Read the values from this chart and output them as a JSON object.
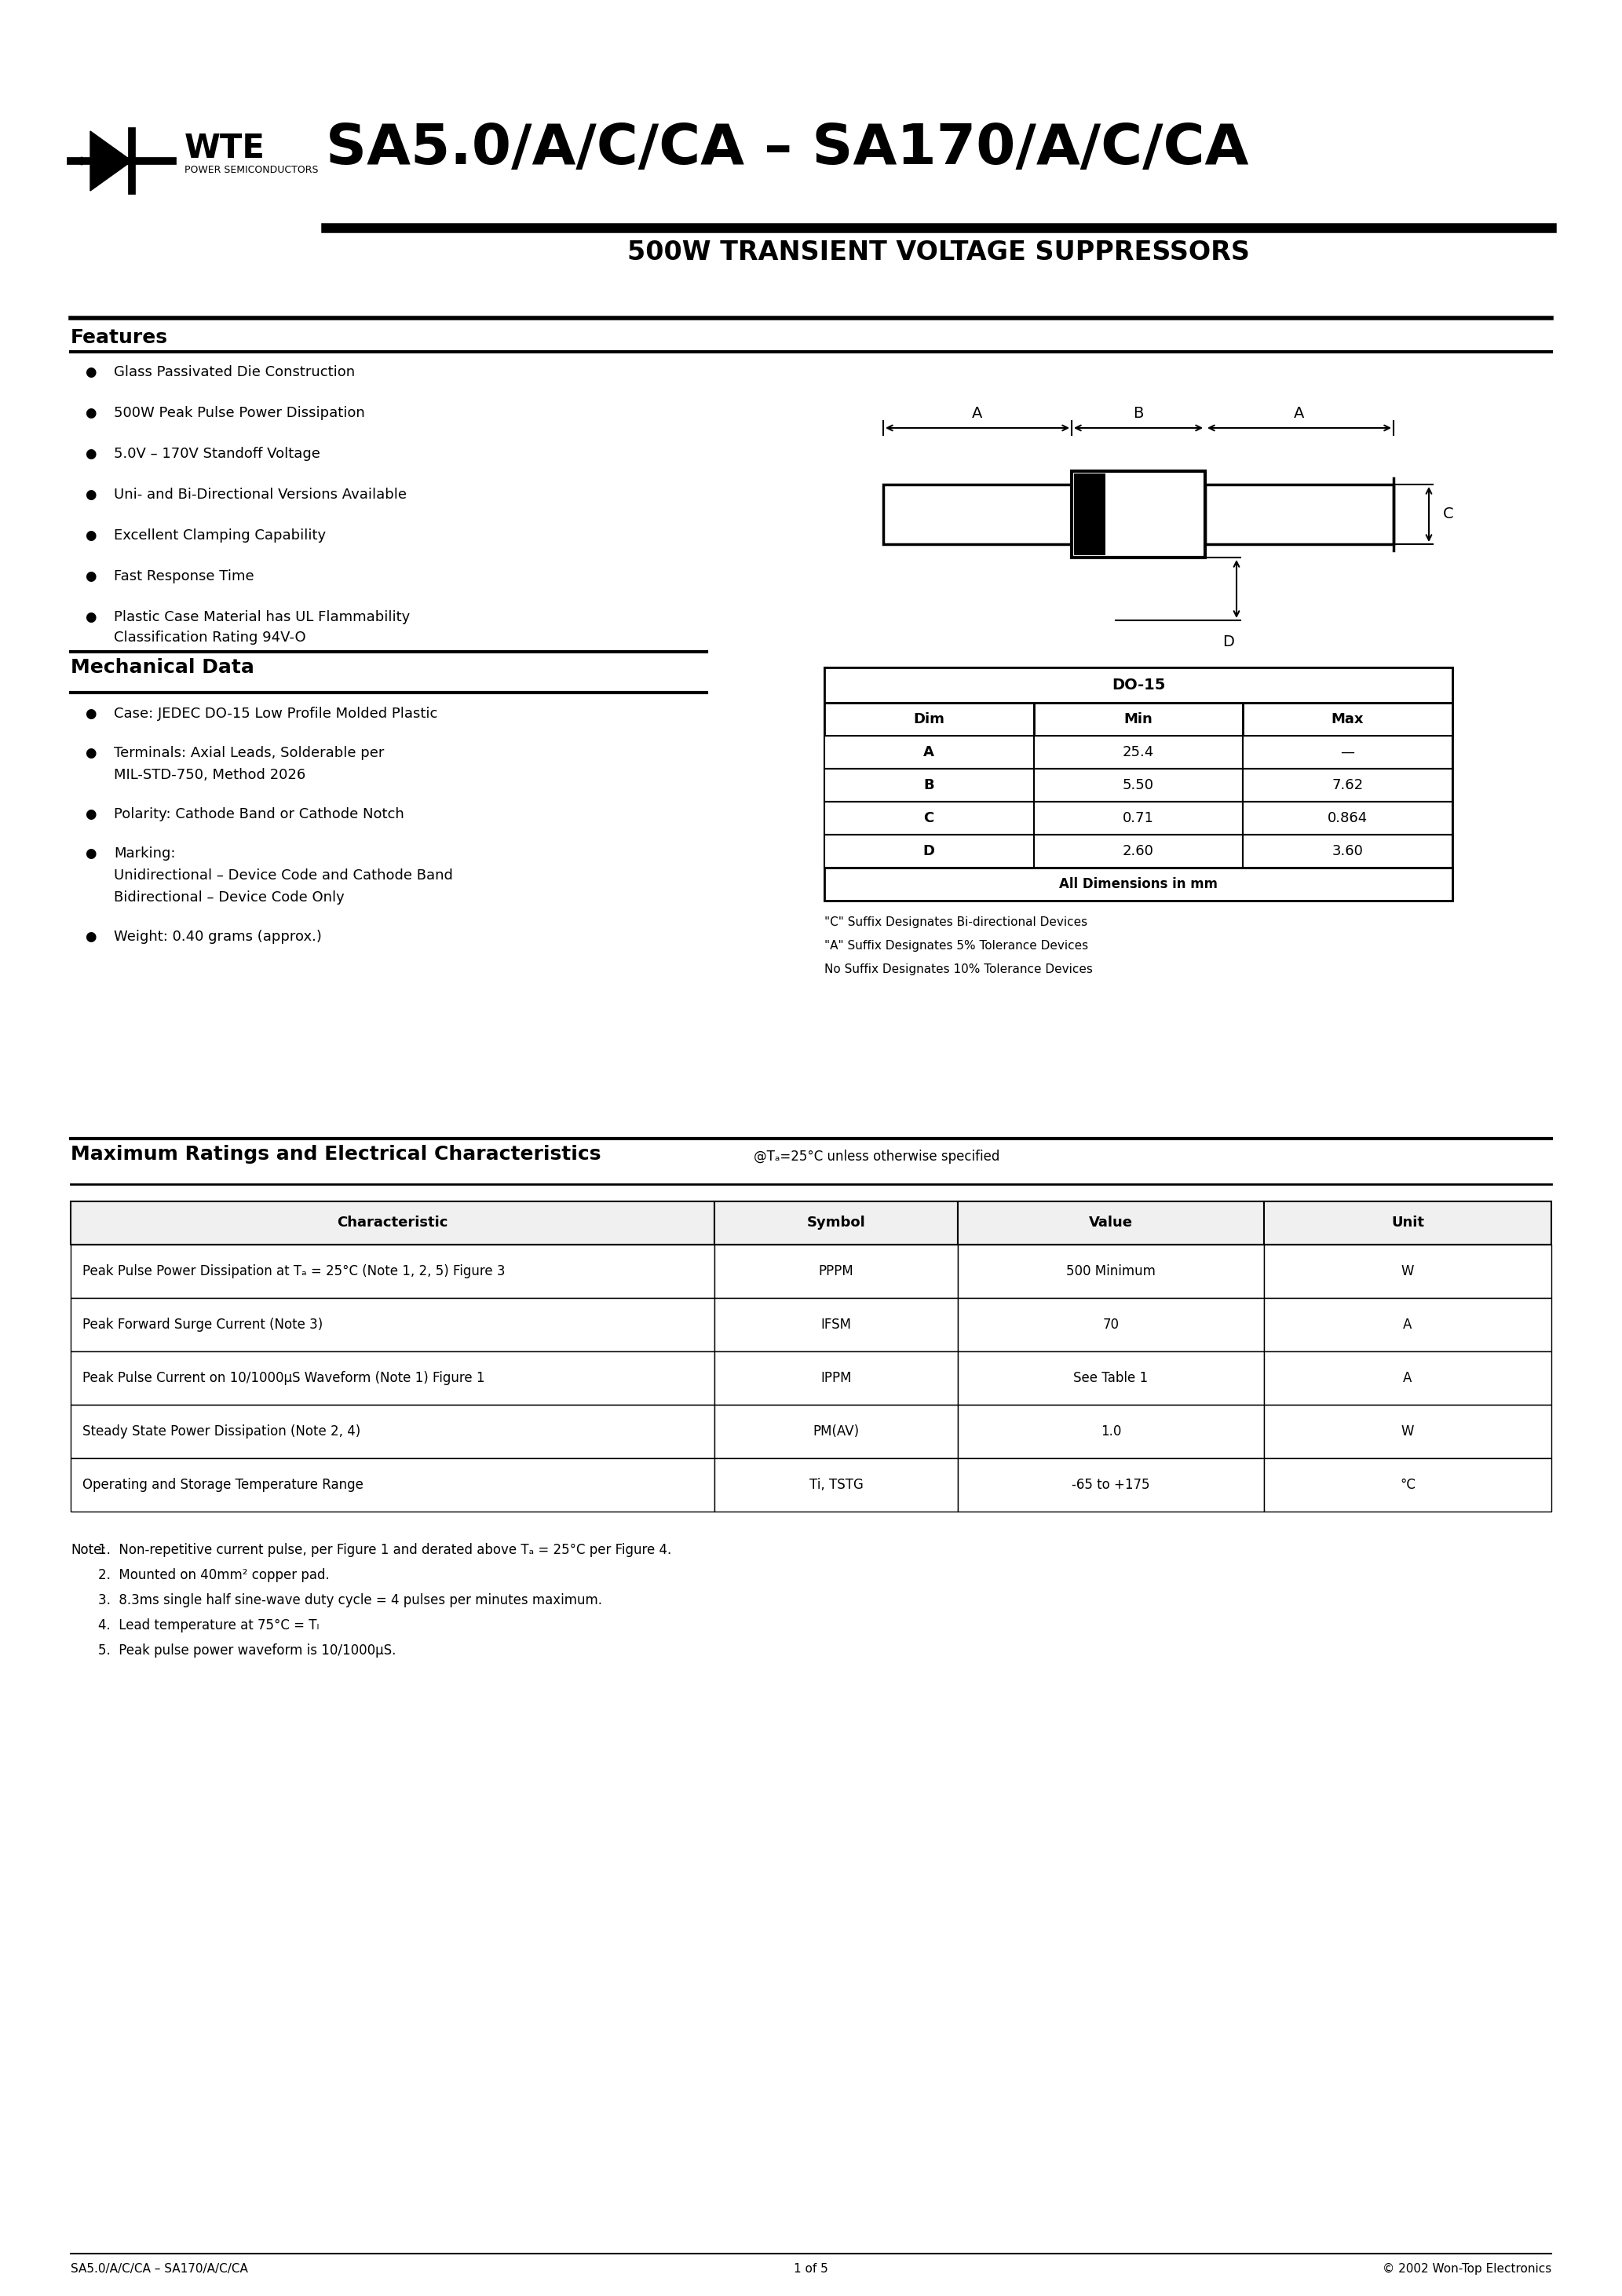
{
  "title_main": "SA5.0/A/C/CA – SA170/A/C/CA",
  "title_sub": "500W TRANSIENT VOLTAGE SUPPRESSORS",
  "features_title": "Features",
  "features": [
    "Glass Passivated Die Construction",
    "500W Peak Pulse Power Dissipation",
    "5.0V – 170V Standoff Voltage",
    "Uni- and Bi-Directional Versions Available",
    "Excellent Clamping Capability",
    "Fast Response Time",
    [
      "Plastic Case Material has UL Flammability",
      "Classification Rating 94V-O"
    ]
  ],
  "mech_title": "Mechanical Data",
  "mech_items": [
    [
      "Case: JEDEC DO-15 Low Profile Molded Plastic"
    ],
    [
      "Terminals: Axial Leads, Solderable per",
      "MIL-STD-750, Method 2026"
    ],
    [
      "Polarity: Cathode Band or Cathode Notch"
    ],
    [
      "Marking:",
      "Unidirectional – Device Code and Cathode Band",
      "Bidirectional – Device Code Only"
    ],
    [
      "Weight: 0.40 grams (approx.)"
    ]
  ],
  "dim_table_title": "DO-15",
  "dim_headers": [
    "Dim",
    "Min",
    "Max"
  ],
  "dim_rows": [
    [
      "A",
      "25.4",
      "—"
    ],
    [
      "B",
      "5.50",
      "7.62"
    ],
    [
      "C",
      "0.71",
      "0.864"
    ],
    [
      "D",
      "2.60",
      "3.60"
    ]
  ],
  "dim_footer": "All Dimensions in mm",
  "dim_notes": [
    "\"C\" Suffix Designates Bi-directional Devices",
    "\"A\" Suffix Designates 5% Tolerance Devices",
    "No Suffix Designates 10% Tolerance Devices"
  ],
  "ratings_title": "Maximum Ratings and Electrical Characteristics",
  "ratings_title_sub": "@Tₐ=25°C unless otherwise specified",
  "ratings_headers": [
    "Characteristic",
    "Symbol",
    "Value",
    "Unit"
  ],
  "ratings_rows": [
    [
      "Peak Pulse Power Dissipation at Tₐ = 25°C (Note 1, 2, 5) Figure 3",
      "PPPM",
      "500 Minimum",
      "W"
    ],
    [
      "Peak Forward Surge Current (Note 3)",
      "IFSM",
      "70",
      "A"
    ],
    [
      "Peak Pulse Current on 10/1000μS Waveform (Note 1) Figure 1",
      "IPPM",
      "See Table 1",
      "A"
    ],
    [
      "Steady State Power Dissipation (Note 2, 4)",
      "PM(AV)",
      "1.0",
      "W"
    ],
    [
      "Operating and Storage Temperature Range",
      "Ti, TSTG",
      "-65 to +175",
      "°C"
    ]
  ],
  "ratings_sym_superscript": [
    "PPPM",
    "IFSM",
    "IPPM",
    "PM(AV)",
    "Ti, TSTG"
  ],
  "notes_title": "Note:",
  "notes": [
    "1.  Non-repetitive current pulse, per Figure 1 and derated above Tₐ = 25°C per Figure 4.",
    "2.  Mounted on 40mm² copper pad.",
    "3.  8.3ms single half sine-wave duty cycle = 4 pulses per minutes maximum.",
    "4.  Lead temperature at 75°C = Tₗ",
    "5.  Peak pulse power waveform is 10/1000μS."
  ],
  "footer_left": "SA5.0/A/C/CA – SA170/A/C/CA",
  "footer_center": "1 of 5",
  "footer_right": "© 2002 Won-Top Electronics",
  "bg_color": "#ffffff"
}
